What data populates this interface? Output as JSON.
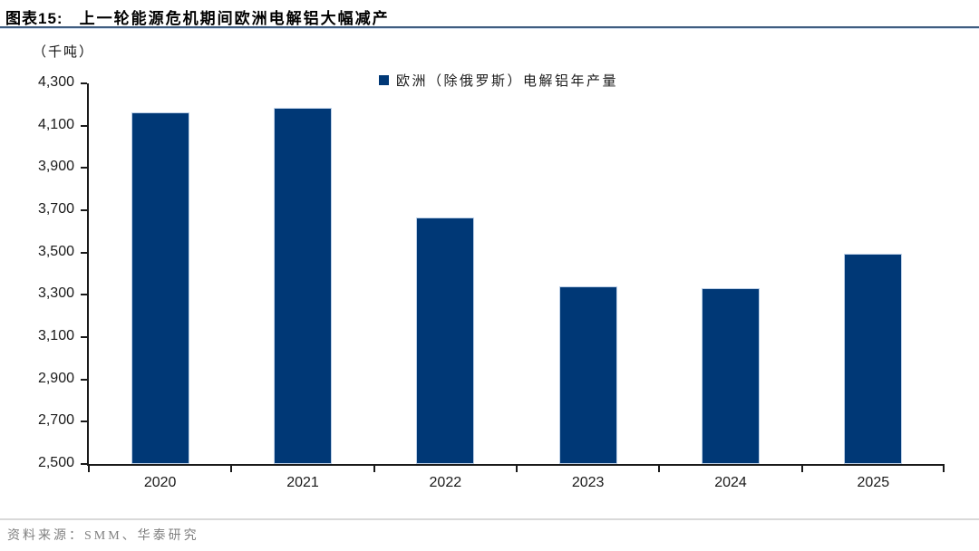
{
  "header": {
    "label": "图表15:",
    "caption": "上一轮能源危机期间欧洲电解铝大幅减产"
  },
  "chart_data": {
    "type": "bar",
    "title": "上一轮能源危机期间欧洲电解铝大幅减产",
    "unit": "（千吨）",
    "legend": "欧洲（除俄罗斯）电解铝年产量",
    "categories": [
      "2020",
      "2021",
      "2022",
      "2023",
      "2024",
      "2025"
    ],
    "values": [
      4165,
      4185,
      3665,
      3340,
      3330,
      3495
    ],
    "ylim": [
      2500,
      4300
    ],
    "ytick_step": 200,
    "ytick_labels": [
      "2,500",
      "2,700",
      "2,900",
      "3,100",
      "3,300",
      "3,500",
      "3,700",
      "3,900",
      "4,100",
      "4,300"
    ],
    "xlabel": "",
    "ylabel": "（千吨）",
    "grid": false,
    "legend_position": "top-center",
    "bar_color": "#003876",
    "bar_edge_color": "#bdd0e7",
    "axis_color": "#1a1a1a"
  },
  "footer": {
    "source": "资料来源：SMM、华泰研究"
  }
}
